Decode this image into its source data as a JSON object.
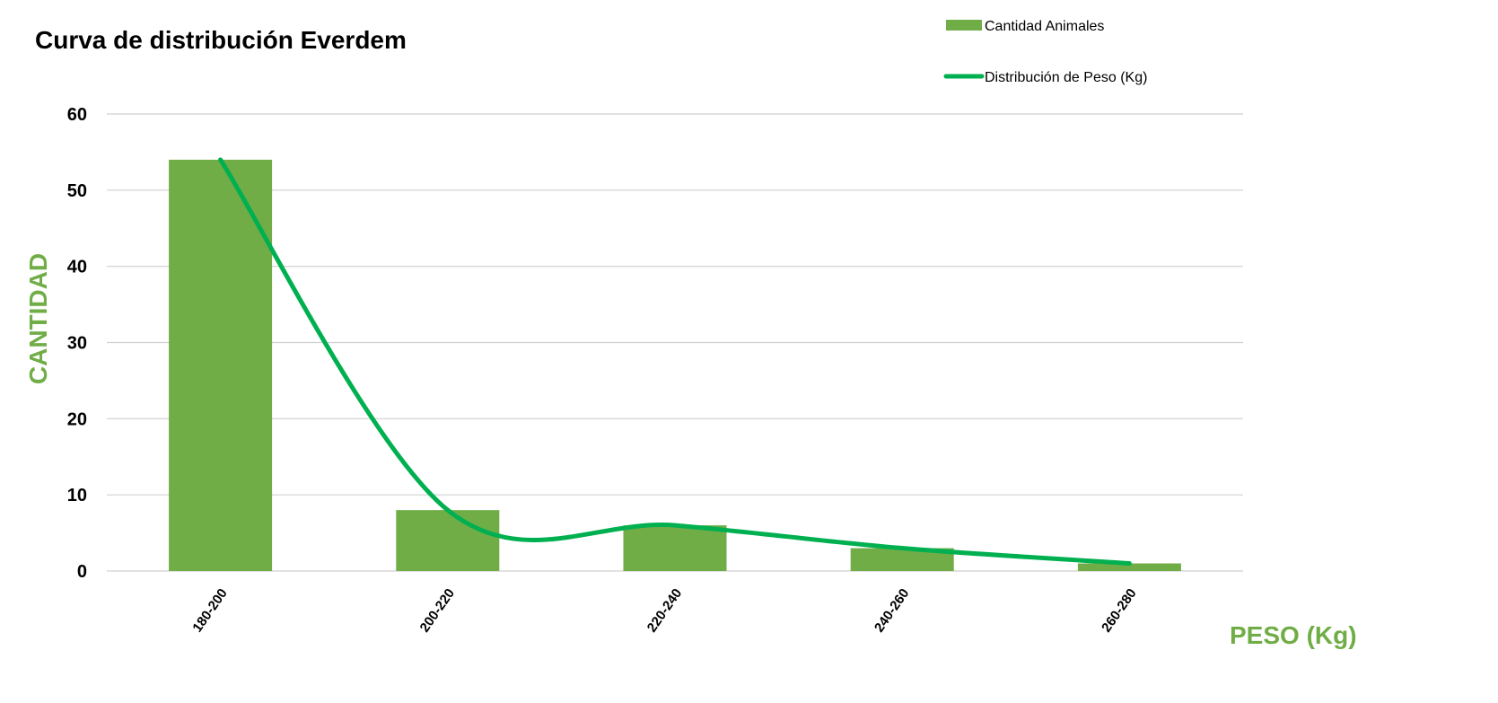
{
  "chart_data": {
    "type": "bar",
    "title": "Curva de distribución Everdem",
    "xlabel": "PESO (Kg)",
    "ylabel": "CANTIDAD",
    "categories": [
      "180-200",
      "200-220",
      "220-240",
      "240-260",
      "260-280"
    ],
    "series": [
      {
        "name": "Cantidad Animales",
        "kind": "bar",
        "values": [
          54,
          8,
          6,
          3,
          1
        ]
      },
      {
        "name": "Distribución de Peso (Kg)",
        "kind": "line",
        "smooth": true,
        "values": [
          54,
          8,
          6,
          3,
          1
        ]
      }
    ],
    "ylim": [
      0,
      60
    ],
    "yticks": [
      0,
      10,
      20,
      30,
      40,
      50,
      60
    ],
    "grid": true,
    "legend": "top-right"
  },
  "colors": {
    "bar": "#70ad47",
    "line": "#00b050",
    "axis_label": "#70ad47"
  }
}
